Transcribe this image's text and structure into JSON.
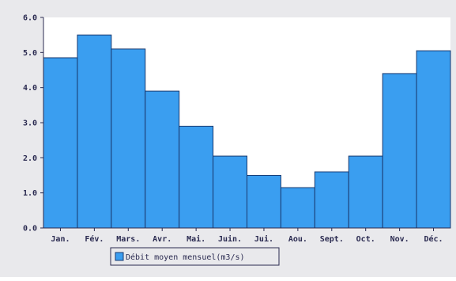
{
  "chart_data": {
    "type": "bar",
    "categories": [
      "Jan.",
      "Fév.",
      "Mars.",
      "Avr.",
      "Mai.",
      "Juin.",
      "Jui.",
      "Aou.",
      "Sept.",
      "Oct.",
      "Nov.",
      "Déc."
    ],
    "series": [
      {
        "name": "Débit moyen mensuel(m3/s)",
        "values": [
          4.85,
          5.5,
          5.1,
          3.9,
          2.9,
          2.05,
          1.5,
          1.15,
          1.6,
          2.05,
          4.4,
          5.05
        ]
      }
    ],
    "yticks": [
      "0.0",
      "1.0",
      "2.0",
      "3.0",
      "4.0",
      "5.0",
      "6.0"
    ],
    "ylim": [
      0,
      6
    ],
    "grid": false,
    "legend_position": "bottom-left",
    "colors": {
      "bar_fill": "#3a9ef0",
      "bar_stroke": "#1a3a70",
      "frame_bg": "#e9e9ec",
      "plot_bg": "#ffffff",
      "axis": "#2a2a50"
    }
  }
}
